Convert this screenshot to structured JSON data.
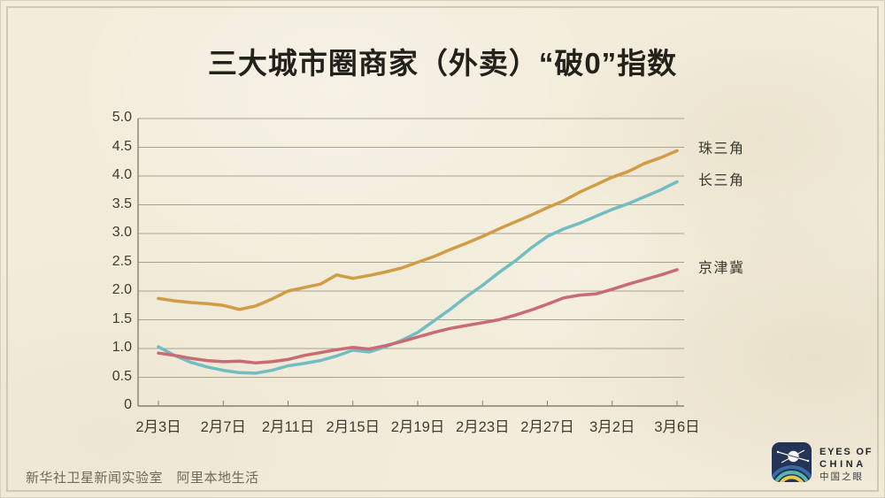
{
  "title": "三大城市圈商家（外卖）“破0”指数",
  "footer": {
    "credit": "新华社卫星新闻实验室　阿里本地生活"
  },
  "logo": {
    "line1": "EYES OF",
    "line2": "CHINA",
    "line3": "中国之眼"
  },
  "colors": {
    "background": "#f2ecda",
    "grid": "#a6a292",
    "axis": "#85816f",
    "tick_text": "#3e3b31",
    "title_text": "#23211b",
    "pearl_delta": "#d19c46",
    "yangtze_delta": "#72bdc4",
    "jingjinji": "#c96b72",
    "logo_navy": "#233457"
  },
  "chart_data": {
    "type": "line",
    "title": "三大城市圈商家（外卖）“破0”指数",
    "xlabel": "",
    "ylabel": "",
    "ylim": [
      0,
      5.0
    ],
    "grid": "horizontal",
    "legend_position": "right-of-line-ends",
    "x_tick_labels": [
      "2月3日",
      "2月7日",
      "2月11日",
      "2月15日",
      "2月19日",
      "2月23日",
      "2月27日",
      "3月2日",
      "3月6日"
    ],
    "x_tick_indices": [
      0,
      4,
      8,
      12,
      16,
      20,
      24,
      28,
      32
    ],
    "x_range_note": "daily values from 2月3日 to 3月6日, 33 points",
    "y_tick_values": [
      5.0,
      4.5,
      4.0,
      3.5,
      3.0,
      2.5,
      2.0,
      1.5,
      1.0,
      0.5,
      0
    ],
    "y_tick_labels": [
      "5.0",
      "4.5",
      "4.0",
      "3.5",
      "3.0",
      "2.5",
      "2.0",
      "1.5",
      "1.0",
      "0.5",
      "0"
    ],
    "series": [
      {
        "id": "zhusanjiao",
        "name": "珠三角",
        "color": "#d19c46",
        "values": [
          1.87,
          1.83,
          1.8,
          1.78,
          1.75,
          1.68,
          1.74,
          1.86,
          2.0,
          2.06,
          2.12,
          2.28,
          2.22,
          2.27,
          2.33,
          2.4,
          2.5,
          2.6,
          2.72,
          2.83,
          2.95,
          3.08,
          3.2,
          3.32,
          3.45,
          3.57,
          3.72,
          3.85,
          3.98,
          4.08,
          4.22,
          4.32,
          4.44
        ]
      },
      {
        "id": "changsanjiao",
        "name": "长三角",
        "color": "#72bdc4",
        "values": [
          1.03,
          0.88,
          0.76,
          0.68,
          0.62,
          0.58,
          0.57,
          0.62,
          0.7,
          0.74,
          0.79,
          0.87,
          0.97,
          0.94,
          1.03,
          1.14,
          1.28,
          1.48,
          1.68,
          1.9,
          2.1,
          2.32,
          2.52,
          2.75,
          2.95,
          3.08,
          3.18,
          3.3,
          3.42,
          3.52,
          3.64,
          3.76,
          3.9
        ]
      },
      {
        "id": "jingjinji",
        "name": "京津冀",
        "color": "#c96b72",
        "values": [
          0.92,
          0.88,
          0.83,
          0.79,
          0.77,
          0.78,
          0.75,
          0.77,
          0.81,
          0.88,
          0.93,
          0.98,
          1.02,
          0.99,
          1.05,
          1.12,
          1.2,
          1.28,
          1.35,
          1.4,
          1.45,
          1.5,
          1.58,
          1.67,
          1.77,
          1.88,
          1.93,
          1.95,
          2.03,
          2.12,
          2.2,
          2.28,
          2.37
        ]
      }
    ]
  }
}
